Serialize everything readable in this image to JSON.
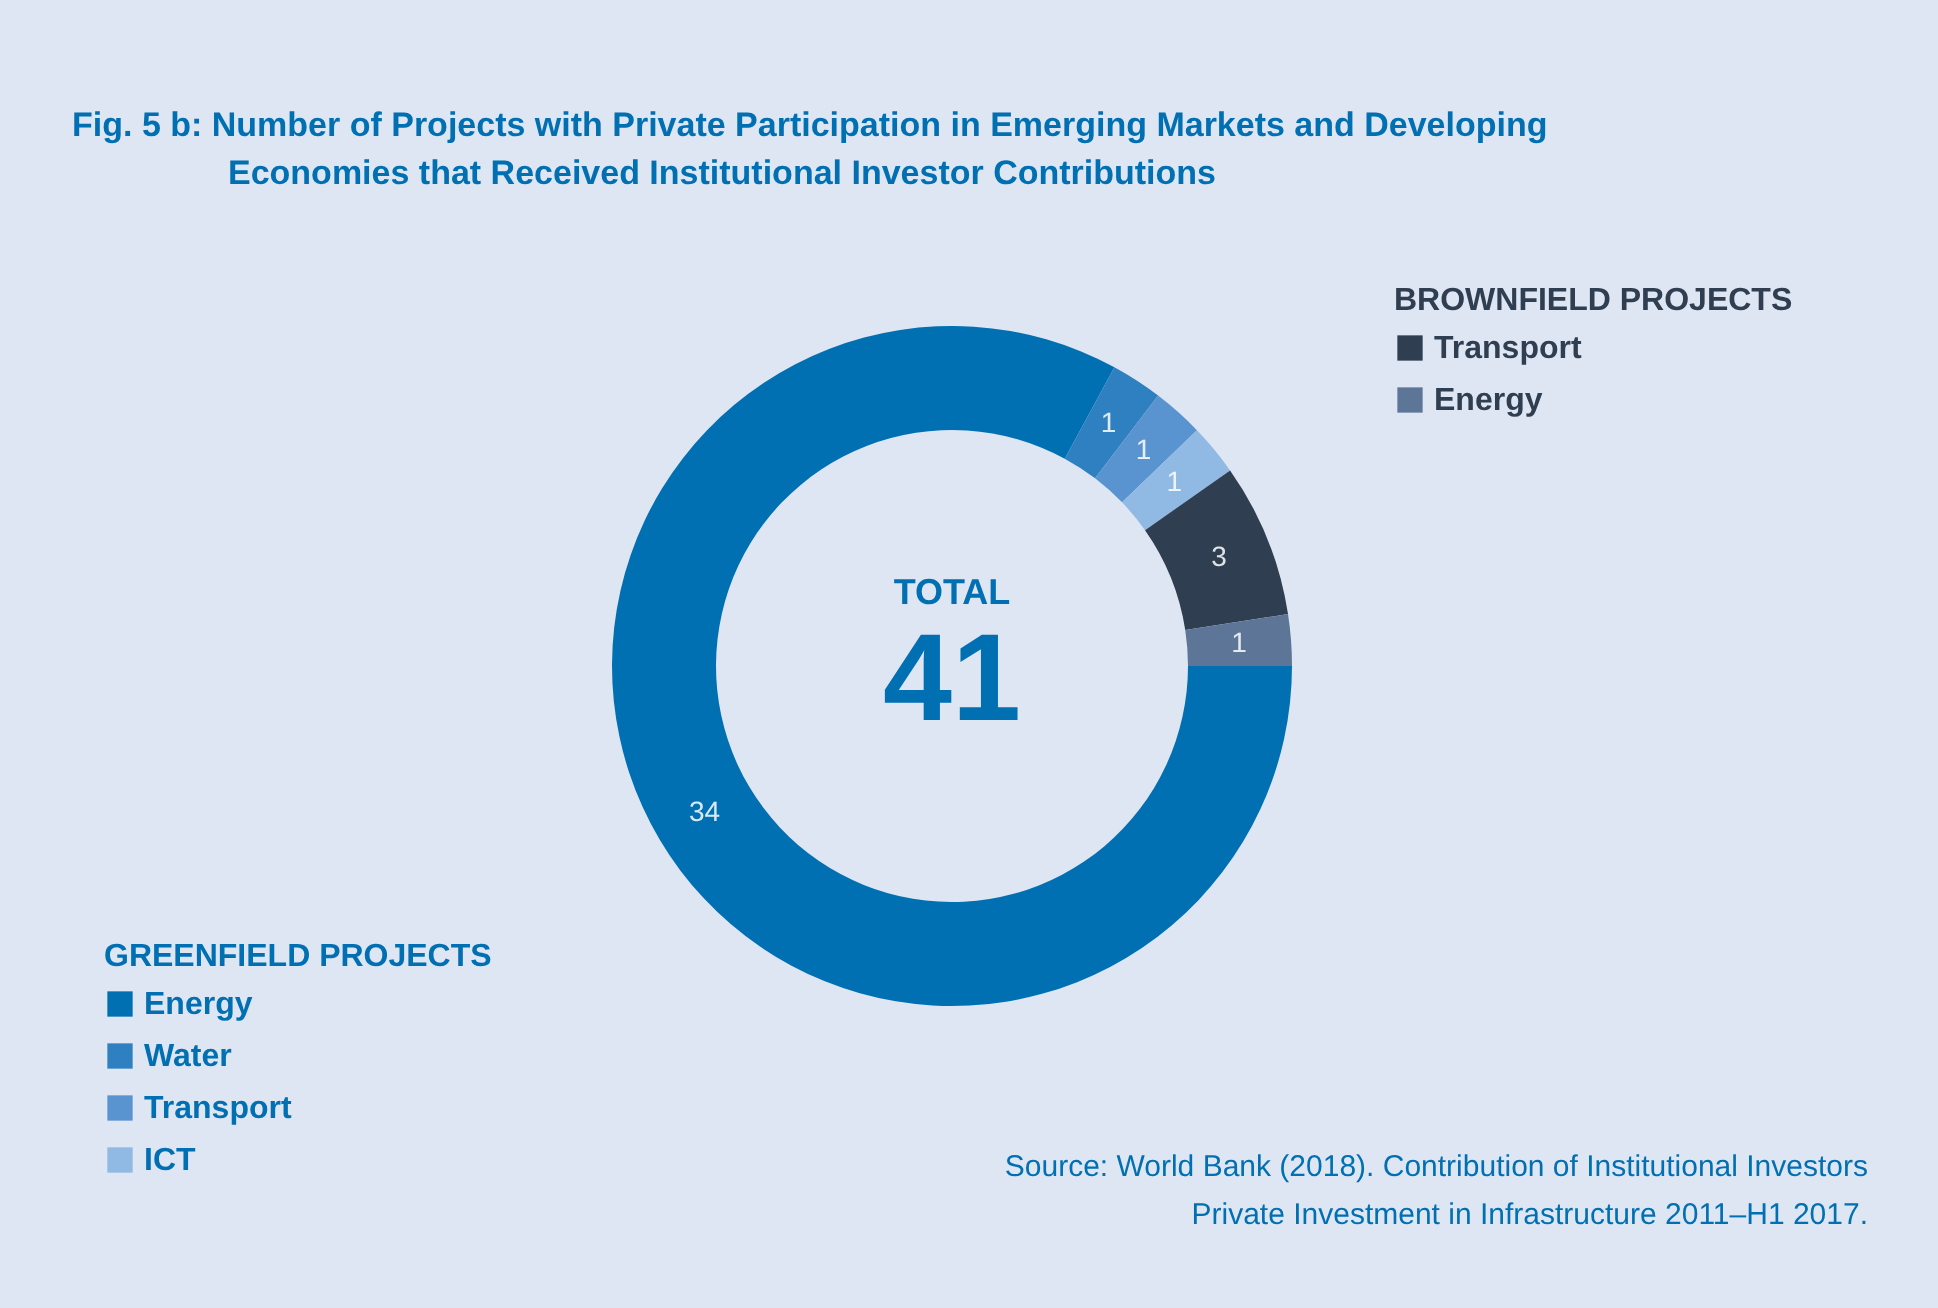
{
  "chart_data": {
    "type": "donut",
    "title": "Fig. 5 b: Number of Projects with Private Participation in Emerging Markets and Developing Economies that Received Institutional Investor Contributions",
    "categories": [
      "Energy",
      "Water",
      "Transport",
      "ICT",
      "Transport",
      "Energy"
    ],
    "values": [
      34,
      1,
      1,
      1,
      3,
      1
    ],
    "colors": [
      "#0070b3",
      "#2f80c0",
      "#5a94d0",
      "#90b9e4",
      "#2f3e50",
      "#5d7698"
    ],
    "legend_title": "GREENFIELD PROJECTS",
    "data_labels": true,
    "legend": "bottom left",
    "annotations": [
      "TOTAL",
      "41",
      "Source:  World Bank (2018). Contribution of Institutional Investors Private Investment in Infrastructure 2011–H1 2017.",
      "BROWNFIELD PROJECTS"
    ]
  }
}
